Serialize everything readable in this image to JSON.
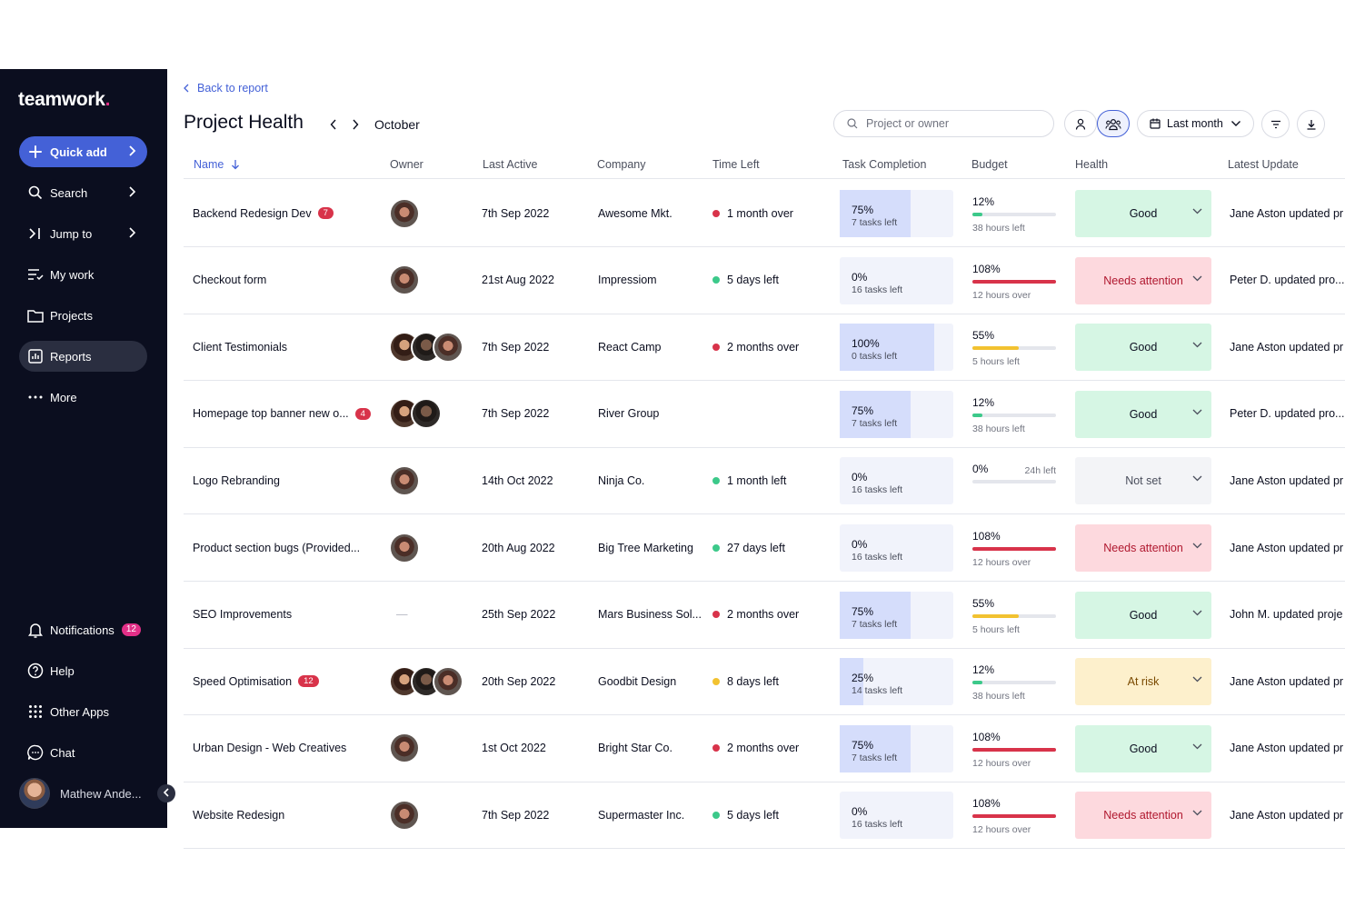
{
  "colors": {
    "sidebar_bg": "#0b0e1f",
    "accent": "#4461d7",
    "brand_dot": "#e22f87"
  },
  "sidebar": {
    "logo_text": "teamwork",
    "logo_dot": ".",
    "quick_add": "Quick add",
    "search": "Search",
    "jump_to": "Jump to",
    "my_work": "My work",
    "projects": "Projects",
    "reports": "Reports",
    "more": "More",
    "notifications": "Notifications",
    "notifications_count": "12",
    "help": "Help",
    "other_apps": "Other Apps",
    "chat": "Chat",
    "user_name": "Mathew Ande..."
  },
  "header": {
    "back_link": "Back to report",
    "title": "Project Health",
    "month": "October",
    "search_placeholder": "Project or owner",
    "date_filter": "Last month"
  },
  "columns": {
    "name": "Name",
    "owner": "Owner",
    "last_active": "Last Active",
    "company": "Company",
    "time_left": "Time Left",
    "task_completion": "Task Completion",
    "budget": "Budget",
    "health": "Health",
    "latest_update": "Latest Update"
  },
  "rows": [
    {
      "name": "Backend Redesign Dev",
      "badge": "7",
      "owners": [
        "a"
      ],
      "last_active": "7th Sep 2022",
      "company": "Awesome Mkt.",
      "time_left": "1 month over",
      "time_status": "red",
      "task_pct": "75%",
      "task_fraction": 0.75,
      "task_sub": "7 tasks left",
      "budget_pct": "12%",
      "budget_fraction": 0.12,
      "budget_color": "green",
      "budget_sub": "38 hours left",
      "budget_right": "",
      "health": "Good",
      "health_type": "good",
      "update": "Jane Aston updated pr"
    },
    {
      "name": "Checkout form",
      "badge": "",
      "owners": [
        "a"
      ],
      "last_active": "21st Aug 2022",
      "company": "Impressiom",
      "time_left": "5 days left",
      "time_status": "green",
      "task_pct": "0%",
      "task_fraction": 0,
      "task_sub": "16 tasks left",
      "budget_pct": "108%",
      "budget_fraction": 1.0,
      "budget_color": "red",
      "budget_sub": "12 hours over",
      "budget_right": "",
      "health": "Needs attention",
      "health_type": "attention",
      "update": "Peter D. updated pro..."
    },
    {
      "name": "Client Testimonials",
      "badge": "",
      "owners": [
        "c",
        "b",
        "a"
      ],
      "last_active": "7th Sep 2022",
      "company": "React Camp",
      "time_left": "2 months over",
      "time_status": "red",
      "task_pct": "100%",
      "task_fraction": 1.0,
      "task_sub": "0 tasks left",
      "budget_pct": "55%",
      "budget_fraction": 0.55,
      "budget_color": "yellow",
      "budget_sub": "5 hours left",
      "budget_right": "",
      "health": "Good",
      "health_type": "good",
      "update": "Jane Aston updated pr"
    },
    {
      "name": "Homepage top banner new o...",
      "badge": "4",
      "owners": [
        "c",
        "b"
      ],
      "last_active": "7th Sep 2022",
      "company": "River Group",
      "time_left": "",
      "time_status": "",
      "task_pct": "75%",
      "task_fraction": 0.75,
      "task_sub": "7 tasks left",
      "budget_pct": "12%",
      "budget_fraction": 0.12,
      "budget_color": "green",
      "budget_sub": "38 hours left",
      "budget_right": "",
      "health": "Good",
      "health_type": "good",
      "update": "Peter D. updated pro..."
    },
    {
      "name": "Logo Rebranding",
      "badge": "",
      "owners": [
        "a"
      ],
      "last_active": "14th Oct 2022",
      "company": "Ninja Co.",
      "time_left": "1 month left",
      "time_status": "green",
      "task_pct": "0%",
      "task_fraction": 0,
      "task_sub": "16 tasks left",
      "budget_pct": "0%",
      "budget_fraction": 0,
      "budget_color": "green",
      "budget_sub": "",
      "budget_right": "24h left",
      "health": "Not set",
      "health_type": "notset",
      "update": "Jane Aston updated pr"
    },
    {
      "name": "Product section bugs (Provided...",
      "badge": "",
      "owners": [
        "a"
      ],
      "last_active": "20th Aug 2022",
      "company": "Big Tree Marketing",
      "time_left": "27 days left",
      "time_status": "green",
      "task_pct": "0%",
      "task_fraction": 0,
      "task_sub": "16 tasks left",
      "budget_pct": "108%",
      "budget_fraction": 1.0,
      "budget_color": "red",
      "budget_sub": "12 hours over",
      "budget_right": "",
      "health": "Needs attention",
      "health_type": "attention",
      "update": "Jane Aston updated pr"
    },
    {
      "name": "SEO Improvements",
      "badge": "",
      "owners": [],
      "last_active": "25th Sep 2022",
      "company": "Mars Business Sol...",
      "time_left": "2 months over",
      "time_status": "red",
      "task_pct": "75%",
      "task_fraction": 0.75,
      "task_sub": "7 tasks left",
      "budget_pct": "55%",
      "budget_fraction": 0.55,
      "budget_color": "yellow",
      "budget_sub": "5 hours left",
      "budget_right": "",
      "health": "Good",
      "health_type": "good",
      "update": "John M. updated proje"
    },
    {
      "name": "Speed Optimisation",
      "badge": "12",
      "owners": [
        "c",
        "b",
        "a"
      ],
      "last_active": "20th Sep 2022",
      "company": "Goodbit Design",
      "time_left": "8 days left",
      "time_status": "yellow",
      "task_pct": "25%",
      "task_fraction": 0.25,
      "task_sub": "14 tasks left",
      "budget_pct": "12%",
      "budget_fraction": 0.12,
      "budget_color": "green",
      "budget_sub": "38 hours left",
      "budget_right": "",
      "health": "At risk",
      "health_type": "risk",
      "update": "Jane Aston updated pr"
    },
    {
      "name": "Urban Design - Web Creatives",
      "badge": "",
      "owners": [
        "a"
      ],
      "last_active": "1st Oct 2022",
      "company": "Bright Star Co.",
      "time_left": "2 months over",
      "time_status": "red",
      "task_pct": "75%",
      "task_fraction": 0.75,
      "task_sub": "7 tasks left",
      "budget_pct": "108%",
      "budget_fraction": 1.0,
      "budget_color": "red",
      "budget_sub": "12 hours over",
      "budget_right": "",
      "health": "Good",
      "health_type": "good",
      "update": "Jane Aston updated pr"
    },
    {
      "name": "Website Redesign",
      "badge": "",
      "owners": [
        "a"
      ],
      "last_active": "7th Sep 2022",
      "company": "Supermaster Inc.",
      "time_left": "5 days left",
      "time_status": "green",
      "task_pct": "0%",
      "task_fraction": 0,
      "task_sub": "16 tasks left",
      "budget_pct": "108%",
      "budget_fraction": 1.0,
      "budget_color": "red",
      "budget_sub": "12 hours over",
      "budget_right": "",
      "health": "Needs attention",
      "health_type": "attention",
      "update": "Jane Aston updated pr"
    }
  ]
}
